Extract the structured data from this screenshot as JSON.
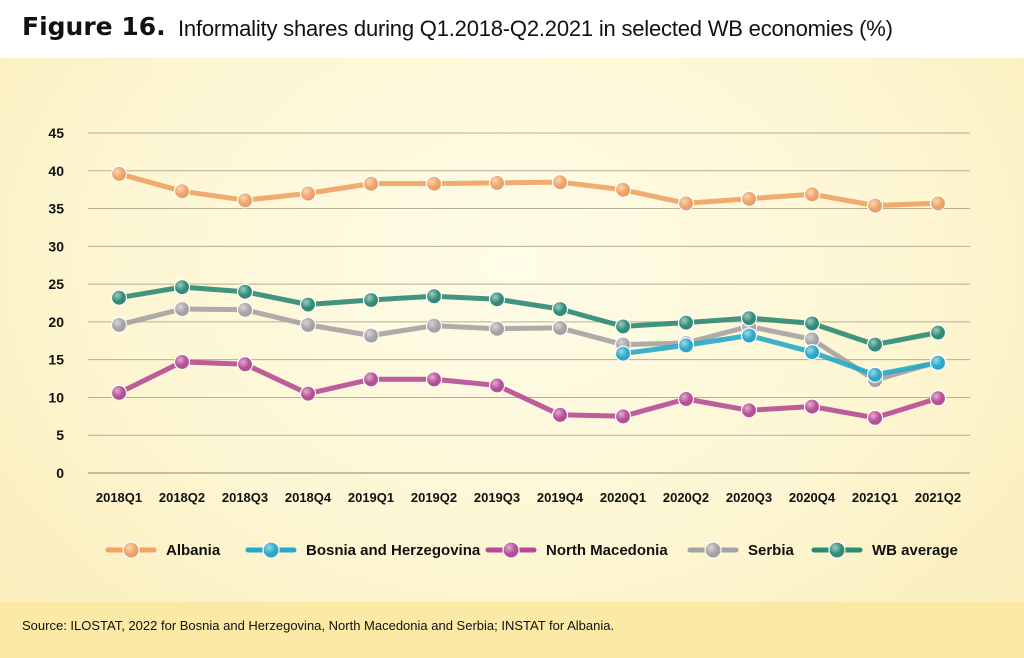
{
  "header": {
    "figure_label": "Figure 16.",
    "title": "Informality shares during Q1.2018-Q2.2021 in selected WB economies (%)"
  },
  "source": "Source: ILOSTAT, 2022 for Bosnia and Herzegovina, North Macedonia and Serbia; INSTAT for Albania.",
  "colors": {
    "background": "#fdf6d2",
    "albania": "#f0a263",
    "bosnia": "#26a8c9",
    "north_macedonia": "#b64b94",
    "serbia": "#a5a2a2",
    "wb_average": "#2c8a74",
    "gridline": "#b5ae96"
  },
  "chart_data": {
    "type": "line",
    "title": "Informality shares during Q1.2018-Q2.2021 in selected WB economies (%)",
    "xlabel": "",
    "ylabel": "",
    "ylim": [
      0,
      45
    ],
    "yticks": [
      0,
      5,
      10,
      15,
      20,
      25,
      30,
      35,
      40,
      45
    ],
    "grid": true,
    "legend_position": "bottom",
    "categories": [
      "2018Q1",
      "2018Q2",
      "2018Q3",
      "2018Q4",
      "2019Q1",
      "2019Q2",
      "2019Q3",
      "2019Q4",
      "2020Q1",
      "2020Q2",
      "2020Q3",
      "2020Q4",
      "2021Q1",
      "2021Q2"
    ],
    "series": [
      {
        "name": "Albania",
        "color": "#f0a263",
        "values": [
          39.6,
          37.3,
          36.1,
          37.0,
          38.3,
          38.3,
          38.4,
          38.5,
          37.5,
          35.7,
          36.3,
          36.9,
          35.4,
          35.7
        ]
      },
      {
        "name": "Bosnia and Herzegovina",
        "color": "#26a8c9",
        "values": [
          null,
          null,
          null,
          null,
          null,
          null,
          null,
          null,
          15.8,
          16.9,
          18.2,
          16.0,
          13.0,
          14.6
        ]
      },
      {
        "name": "North Macedonia",
        "color": "#b64b94",
        "values": [
          10.6,
          14.7,
          14.4,
          10.5,
          12.4,
          12.4,
          11.6,
          7.7,
          7.5,
          9.8,
          8.3,
          8.8,
          7.3,
          9.9
        ]
      },
      {
        "name": "Serbia",
        "color": "#a5a2a2",
        "values": [
          19.6,
          21.7,
          21.6,
          19.6,
          18.2,
          19.5,
          19.1,
          19.2,
          17.0,
          17.2,
          19.4,
          17.7,
          12.3,
          14.7
        ]
      },
      {
        "name": "WB average",
        "color": "#2c8a74",
        "values": [
          23.2,
          24.6,
          24.0,
          22.3,
          22.9,
          23.4,
          23.0,
          21.7,
          19.4,
          19.9,
          20.5,
          19.8,
          17.0,
          18.6
        ]
      }
    ]
  }
}
